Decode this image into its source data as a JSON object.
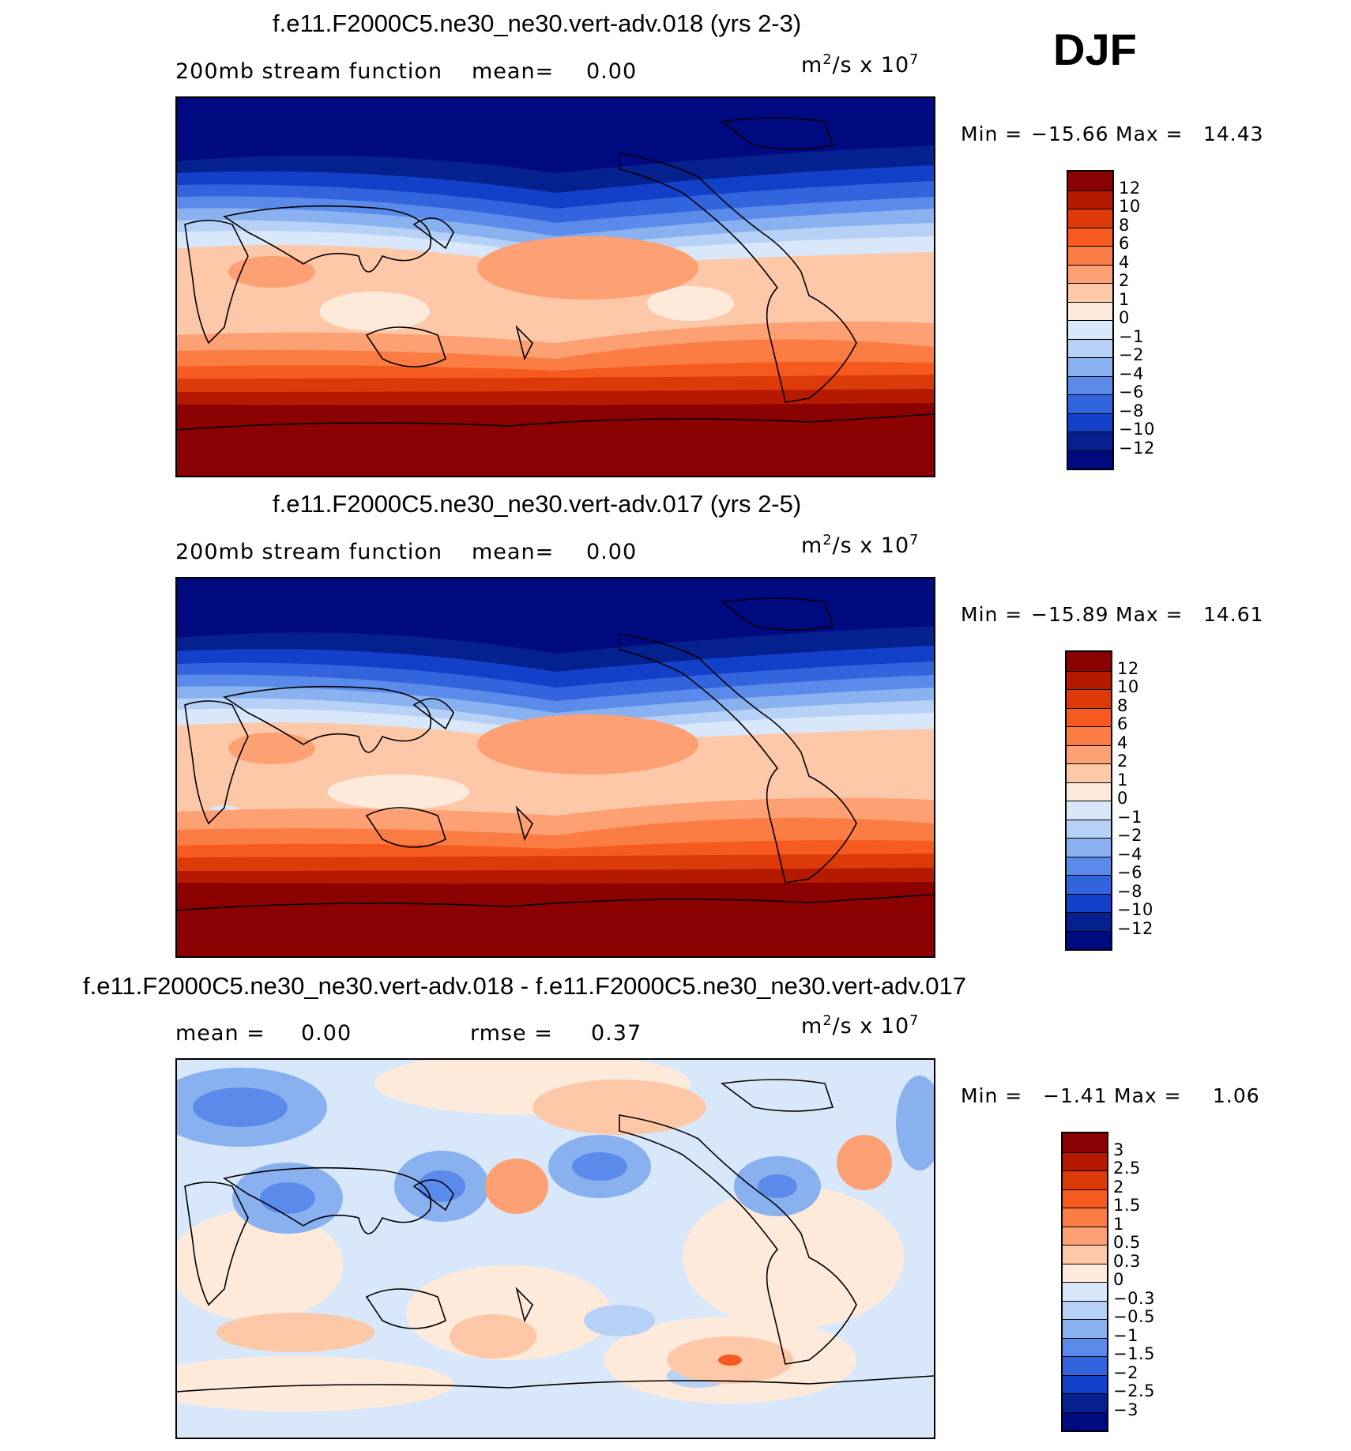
{
  "season": "DJF",
  "panels": [
    {
      "title": "f.e11.F2000C5.ne30_ne30.vert-adv.018 (yrs 2-3)",
      "left_label": "200mb stream function",
      "mean_label": "mean=",
      "mean_value": "0.00",
      "units_base": "m",
      "units_exp": "2",
      "units_rest": "/s x 10",
      "units_power": "7",
      "min_label": "Min = ",
      "min_value": "−15.66",
      "max_label": "Max = ",
      "max_value": "14.43",
      "colorbar": {
        "ticks": [
          "12",
          "10",
          "8",
          "6",
          "4",
          "2",
          "1",
          "0",
          "−1",
          "−2",
          "−4",
          "−6",
          "−8",
          "−10",
          "−12"
        ],
        "colors": [
          "#8b0000",
          "#b51a00",
          "#dd3a0a",
          "#f75a1f",
          "#fb7d43",
          "#fda073",
          "#fdc8a8",
          "#fdeadb",
          "#d8e8fa",
          "#b7d1f6",
          "#89b1f0",
          "#5a8bea",
          "#3264dd",
          "#1240c8",
          "#05208f",
          "#000a80"
        ]
      }
    },
    {
      "title": "f.e11.F2000C5.ne30_ne30.vert-adv.017 (yrs 2-5)",
      "left_label": "200mb stream function",
      "mean_label": "mean=",
      "mean_value": "0.00",
      "units_base": "m",
      "units_exp": "2",
      "units_rest": "/s x 10",
      "units_power": "7",
      "min_label": "Min = ",
      "min_value": "−15.89",
      "max_label": "Max = ",
      "max_value": "14.61",
      "colorbar": {
        "ticks": [
          "12",
          "10",
          "8",
          "6",
          "4",
          "2",
          "1",
          "0",
          "−1",
          "−2",
          "−4",
          "−6",
          "−8",
          "−10",
          "−12"
        ],
        "colors": [
          "#8b0000",
          "#b51a00",
          "#dd3a0a",
          "#f75a1f",
          "#fb7d43",
          "#fda073",
          "#fdc8a8",
          "#fdeadb",
          "#d8e8fa",
          "#b7d1f6",
          "#89b1f0",
          "#5a8bea",
          "#3264dd",
          "#1240c8",
          "#05208f",
          "#000a80"
        ]
      }
    },
    {
      "title": "f.e11.F2000C5.ne30_ne30.vert-adv.018 - f.e11.F2000C5.ne30_ne30.vert-adv.017",
      "mean_label": "mean =",
      "mean_value": "0.00",
      "rmse_label": "rmse =",
      "rmse_value": "0.37",
      "units_base": "m",
      "units_exp": "2",
      "units_rest": "/s x 10",
      "units_power": "7",
      "min_label": "Min = ",
      "min_value": "−1.41",
      "max_label": "Max = ",
      "max_value": "1.06",
      "colorbar": {
        "ticks": [
          "3",
          "2.5",
          "2",
          "1.5",
          "1",
          "0.5",
          "0.3",
          "0",
          "−0.3",
          "−0.5",
          "−1",
          "−1.5",
          "−2",
          "−2.5",
          "−3"
        ],
        "colors": [
          "#8b0000",
          "#b51a00",
          "#dd3a0a",
          "#f75a1f",
          "#fb7d43",
          "#fda073",
          "#fdc8a8",
          "#fdeadb",
          "#d8e8fa",
          "#b7d1f6",
          "#89b1f0",
          "#5a8bea",
          "#3264dd",
          "#1240c8",
          "#05208f",
          "#000a80"
        ]
      }
    }
  ]
}
